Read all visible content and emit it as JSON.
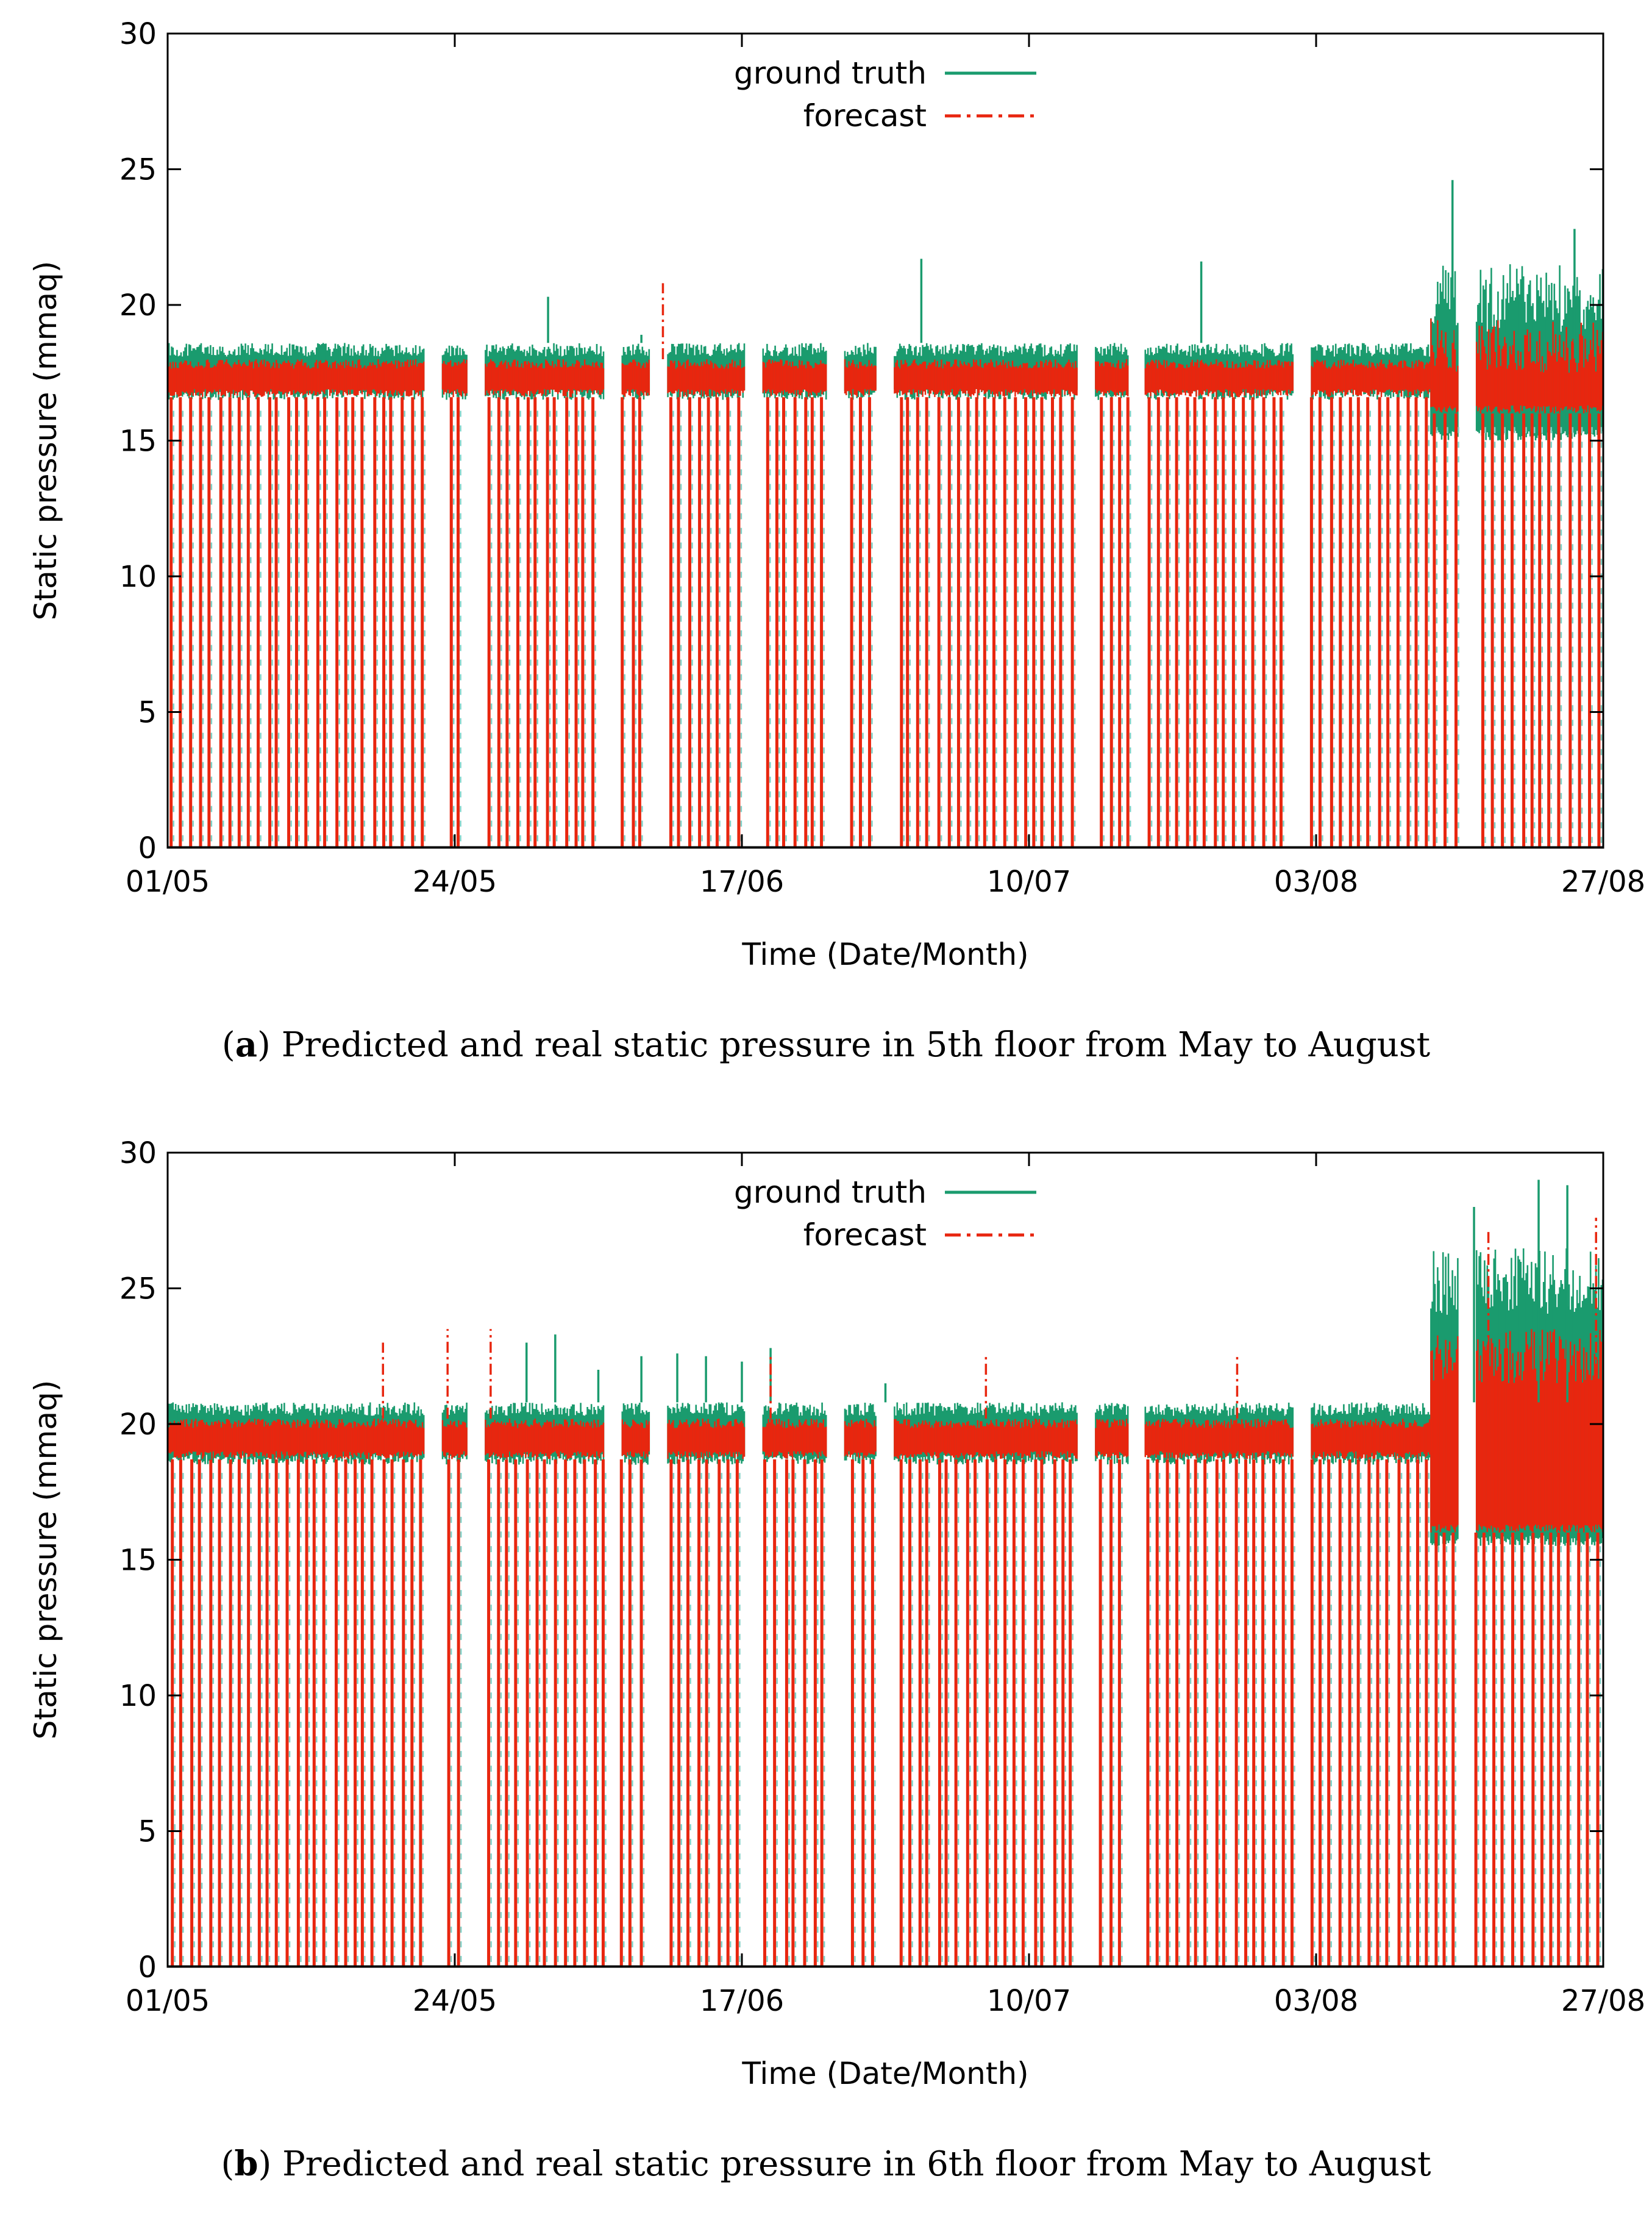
{
  "colors": {
    "ground_truth": "#1a9b6e",
    "forecast": "#e8260f",
    "gap_dash": "#7fd0c6",
    "axis": "#000000"
  },
  "chart_data": [
    {
      "id": "a",
      "type": "line",
      "panel_letter": "a",
      "caption": "Predicted and real static pressure in 5th floor from May to August",
      "xlabel": "Time (Date/Month)",
      "ylabel": "Static pressure (mmaq)",
      "ylim": [
        0,
        30
      ],
      "yticks": [
        "0",
        "5",
        "10",
        "15",
        "20",
        "25",
        "30"
      ],
      "xticks": [
        "01/05",
        "24/05",
        "17/06",
        "10/07",
        "03/08",
        "27/08"
      ],
      "legend": {
        "position": "top-center",
        "entries": [
          "ground truth",
          "forecast"
        ]
      },
      "series": [
        {
          "name": "ground truth",
          "band_low": 16.5,
          "band_high": 18.6,
          "late_band_low": 15.0,
          "late_band_high": 21.5,
          "spikes": [
            [
              0.265,
              20.3
            ],
            [
              0.33,
              18.9
            ],
            [
              0.525,
              21.7
            ],
            [
              0.72,
              21.6
            ],
            [
              0.895,
              24.6
            ],
            [
              0.98,
              22.8
            ]
          ]
        },
        {
          "name": "forecast",
          "band_low": 16.6,
          "band_high": 18.0,
          "late_band_low": 16.0,
          "late_band_high": 19.5,
          "spikes": [
            [
              0.345,
              20.8
            ]
          ]
        }
      ],
      "gaps": [
        0.185,
        0.215,
        0.31,
        0.342,
        0.408,
        0.465,
        0.5,
        0.64,
        0.675,
        0.79,
        0.905
      ]
    },
    {
      "id": "b",
      "type": "line",
      "panel_letter": "b",
      "caption": "Predicted and real static pressure in 6th floor from May to August",
      "xlabel": "Time (Date/Month)",
      "ylabel": "Static pressure (mmaq)",
      "ylim": [
        0,
        30
      ],
      "yticks": [
        "0",
        "5",
        "10",
        "15",
        "20",
        "25",
        "30"
      ],
      "xticks": [
        "01/05",
        "24/05",
        "17/06",
        "10/07",
        "03/08",
        "27/08"
      ],
      "legend": {
        "position": "top-center",
        "entries": [
          "ground truth",
          "forecast"
        ]
      },
      "series": [
        {
          "name": "ground truth",
          "band_low": 18.5,
          "band_high": 20.8,
          "late_band_low": 15.5,
          "late_band_high": 26.5,
          "spikes": [
            [
              0.25,
              23.0
            ],
            [
              0.27,
              23.3
            ],
            [
              0.3,
              22.0
            ],
            [
              0.33,
              22.5
            ],
            [
              0.355,
              22.6
            ],
            [
              0.375,
              22.5
            ],
            [
              0.4,
              22.3
            ],
            [
              0.42,
              22.8
            ],
            [
              0.5,
              21.5
            ],
            [
              0.955,
              29.0
            ],
            [
              0.975,
              28.8
            ],
            [
              0.91,
              28.0
            ]
          ]
        },
        {
          "name": "forecast",
          "band_low": 18.7,
          "band_high": 20.2,
          "late_band_low": 16.0,
          "late_band_high": 23.5,
          "spikes": [
            [
              0.15,
              23.0
            ],
            [
              0.195,
              23.5
            ],
            [
              0.225,
              23.5
            ],
            [
              0.42,
              22.5
            ],
            [
              0.57,
              22.5
            ],
            [
              0.745,
              22.6
            ],
            [
              0.92,
              27.2
            ],
            [
              0.995,
              27.6
            ]
          ]
        }
      ],
      "gaps": [
        0.185,
        0.215,
        0.31,
        0.342,
        0.408,
        0.465,
        0.5,
        0.64,
        0.675,
        0.79,
        0.905
      ]
    }
  ]
}
